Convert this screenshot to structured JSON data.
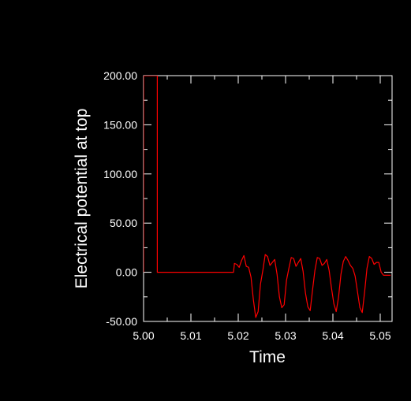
{
  "colors": {
    "background": "#000000",
    "axes": "#ffffff",
    "series": "#ff0000"
  },
  "chart_data": {
    "type": "line",
    "title": "",
    "xlabel": "Time",
    "ylabel": "Electrical potential at top",
    "xlim": [
      5.0,
      5.0525
    ],
    "ylim": [
      -50,
      200
    ],
    "grid": false,
    "x_ticks": [
      5.0,
      5.01,
      5.02,
      5.03,
      5.04,
      5.05
    ],
    "x_tick_labels": [
      "5.00",
      "5.01",
      "5.02",
      "5.03",
      "5.04",
      "5.05"
    ],
    "y_ticks": [
      200,
      150,
      100,
      50,
      0,
      -50
    ],
    "y_tick_labels": [
      "200.00",
      "150.00",
      "100.00",
      "50.00",
      "0.00",
      "-50.00"
    ],
    "series": [
      {
        "color": "#ff0000",
        "x": [
          5.0,
          5.0,
          5.0029,
          5.0029,
          5.019,
          5.0192,
          5.0197,
          5.0202,
          5.0207,
          5.0212,
          5.0217,
          5.0222,
          5.0227,
          5.0232,
          5.0237,
          5.0242,
          5.0247,
          5.0252,
          5.0257,
          5.0262,
          5.0267,
          5.0272,
          5.0277,
          5.0282,
          5.0287,
          5.0292,
          5.0297,
          5.0302,
          5.0307,
          5.0312,
          5.0317,
          5.0322,
          5.0327,
          5.0332,
          5.0337,
          5.0342,
          5.0347,
          5.0352,
          5.0357,
          5.0362,
          5.0367,
          5.0372,
          5.0377,
          5.0382,
          5.0387,
          5.0392,
          5.0397,
          5.0402,
          5.0407,
          5.0412,
          5.0417,
          5.0422,
          5.0427,
          5.0432,
          5.0437,
          5.0442,
          5.0447,
          5.0452,
          5.0457,
          5.0462,
          5.0467,
          5.0472,
          5.0477,
          5.0482,
          5.0487,
          5.0492,
          5.0497,
          5.0502,
          5.0507,
          5.0512,
          5.0517,
          5.0522
        ],
        "y": [
          0,
          200,
          200,
          0,
          0,
          9,
          8,
          5,
          12,
          17,
          6,
          5,
          -5,
          -28,
          -46,
          -40,
          -12,
          2,
          18,
          16,
          7,
          10,
          13,
          -2,
          -25,
          -36,
          -33,
          -8,
          4,
          15,
          14,
          6,
          10,
          14,
          1,
          -21,
          -35,
          -39,
          -18,
          2,
          15,
          14,
          7,
          9,
          13,
          2,
          -16,
          -32,
          -40,
          -25,
          -2,
          11,
          16,
          12,
          7,
          4,
          -4,
          -20,
          -36,
          -41,
          -20,
          4,
          16,
          14,
          8,
          10,
          10,
          0,
          -3,
          -3,
          -3,
          -3
        ]
      }
    ]
  }
}
